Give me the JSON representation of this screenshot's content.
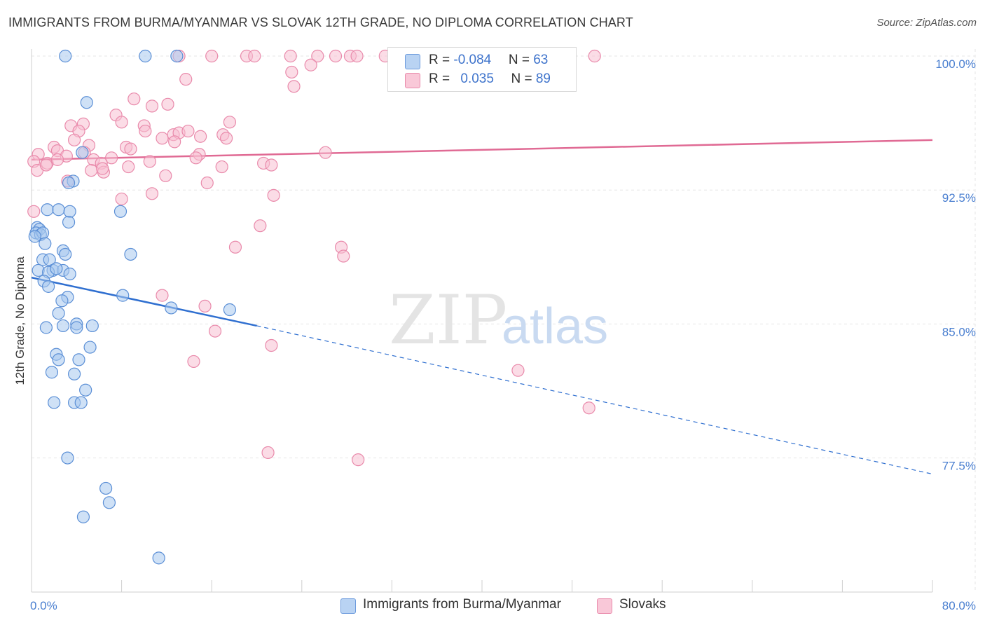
{
  "title": "IMMIGRANTS FROM BURMA/MYANMAR VS SLOVAK 12TH GRADE, NO DIPLOMA CORRELATION CHART",
  "source": "Source: ZipAtlas.com",
  "watermark": {
    "zip": "ZIP",
    "atlas": "atlas"
  },
  "colors": {
    "blue_fill": "#a8c8ef",
    "blue_stroke": "#5b8fd6",
    "blue_line": "#2f6fd0",
    "pink_fill": "#f7bfd2",
    "pink_stroke": "#e98aab",
    "pink_line": "#e06a94",
    "tick": "#4a7fd0",
    "grid": "#e6e6e6"
  },
  "legend": {
    "rows": [
      {
        "r_label": "R = ",
        "r_value": "-0.084",
        "n_label": "N = ",
        "n_value": "63",
        "color": "blue"
      },
      {
        "r_label": "R = ",
        "r_value": "0.035",
        "n_label": "N = ",
        "n_value": "89",
        "color": "pink"
      }
    ]
  },
  "bottom_legend": [
    "Immigrants from Burma/Myanmar",
    "Slovaks"
  ],
  "chart_data": {
    "type": "scatter",
    "xlabel": "",
    "ylabel": "12th Grade, No Diploma",
    "xlim": [
      0,
      80
    ],
    "ylim": [
      71.5,
      101.5
    ],
    "x_tick_labels": [
      "0.0%",
      "80.0%"
    ],
    "y_ticks": [
      100,
      92.5,
      85,
      77.5
    ],
    "y_tick_labels": [
      "100.0%",
      "92.5%",
      "85.0%",
      "77.5%"
    ],
    "grid": true,
    "series": [
      {
        "name": "Immigrants from Burma/Myanmar",
        "color": "blue",
        "R": -0.084,
        "N": 63,
        "trend": {
          "x0": 0,
          "y0": 87.6,
          "x1": 20,
          "y1": 84.9,
          "dashed_to_x": 80,
          "dashed_to_y": 76.6
        },
        "points": [
          [
            3.0,
            100.0
          ],
          [
            10.1,
            100.0
          ],
          [
            12.9,
            100.0
          ],
          [
            4.9,
            97.4
          ],
          [
            4.5,
            94.6
          ],
          [
            3.7,
            93.0
          ],
          [
            3.3,
            92.9
          ],
          [
            1.4,
            91.4
          ],
          [
            2.4,
            91.4
          ],
          [
            3.4,
            91.3
          ],
          [
            7.9,
            91.3
          ],
          [
            3.3,
            90.7
          ],
          [
            0.5,
            90.4
          ],
          [
            0.7,
            90.3
          ],
          [
            0.4,
            90.1
          ],
          [
            0.8,
            90.0
          ],
          [
            1.0,
            90.1
          ],
          [
            0.3,
            89.9
          ],
          [
            1.2,
            89.5
          ],
          [
            2.8,
            89.1
          ],
          [
            8.8,
            88.9
          ],
          [
            1.0,
            88.6
          ],
          [
            3.0,
            88.9
          ],
          [
            1.6,
            88.6
          ],
          [
            0.6,
            88.0
          ],
          [
            1.9,
            88.0
          ],
          [
            1.5,
            87.9
          ],
          [
            2.8,
            88.0
          ],
          [
            2.2,
            88.1
          ],
          [
            3.4,
            87.8
          ],
          [
            1.1,
            87.4
          ],
          [
            1.5,
            87.1
          ],
          [
            3.2,
            86.5
          ],
          [
            8.1,
            86.6
          ],
          [
            2.7,
            86.3
          ],
          [
            12.4,
            85.9
          ],
          [
            17.6,
            85.8
          ],
          [
            2.4,
            85.6
          ],
          [
            2.8,
            84.9
          ],
          [
            1.3,
            84.8
          ],
          [
            4.0,
            85.0
          ],
          [
            4.0,
            84.8
          ],
          [
            5.4,
            84.9
          ],
          [
            2.2,
            83.3
          ],
          [
            5.2,
            83.7
          ],
          [
            2.4,
            83.0
          ],
          [
            4.2,
            83.0
          ],
          [
            1.8,
            82.3
          ],
          [
            3.8,
            82.2
          ],
          [
            4.8,
            81.3
          ],
          [
            2.0,
            80.6
          ],
          [
            3.8,
            80.6
          ],
          [
            4.4,
            80.6
          ],
          [
            3.2,
            77.5
          ],
          [
            6.6,
            75.8
          ],
          [
            6.9,
            75.0
          ],
          [
            4.6,
            74.2
          ],
          [
            11.3,
            71.9
          ]
        ]
      },
      {
        "name": "Slovaks",
        "color": "pink",
        "R": 0.035,
        "N": 89,
        "trend": {
          "x0": 0,
          "y0": 94.2,
          "x1": 80,
          "y1": 95.3
        },
        "points": [
          [
            13.1,
            100.0
          ],
          [
            16.0,
            100.0
          ],
          [
            19.1,
            100.0
          ],
          [
            19.8,
            100.0
          ],
          [
            23.0,
            100.0
          ],
          [
            25.4,
            100.0
          ],
          [
            27.0,
            100.0
          ],
          [
            28.3,
            100.0
          ],
          [
            28.9,
            100.0
          ],
          [
            31.4,
            100.0
          ],
          [
            37.0,
            100.0
          ],
          [
            41.0,
            100.0
          ],
          [
            43.9,
            100.0
          ],
          [
            50.0,
            100.0
          ],
          [
            13.7,
            98.7
          ],
          [
            23.1,
            99.1
          ],
          [
            24.8,
            99.5
          ],
          [
            23.3,
            98.3
          ],
          [
            9.1,
            97.6
          ],
          [
            12.1,
            97.3
          ],
          [
            10.7,
            97.2
          ],
          [
            7.5,
            96.7
          ],
          [
            8.0,
            96.3
          ],
          [
            3.5,
            96.1
          ],
          [
            4.6,
            96.2
          ],
          [
            10.0,
            96.1
          ],
          [
            17.6,
            96.3
          ],
          [
            11.6,
            95.4
          ],
          [
            12.6,
            95.6
          ],
          [
            13.1,
            95.7
          ],
          [
            13.9,
            95.8
          ],
          [
            15.0,
            95.5
          ],
          [
            17.0,
            95.6
          ],
          [
            17.3,
            95.4
          ],
          [
            4.2,
            95.8
          ],
          [
            10.1,
            95.8
          ],
          [
            3.8,
            95.3
          ],
          [
            12.7,
            95.2
          ],
          [
            2.0,
            94.9
          ],
          [
            5.1,
            95.0
          ],
          [
            8.4,
            94.9
          ],
          [
            8.8,
            94.8
          ],
          [
            2.3,
            94.7
          ],
          [
            4.7,
            94.6
          ],
          [
            14.9,
            94.5
          ],
          [
            26.1,
            94.6
          ],
          [
            0.6,
            94.5
          ],
          [
            3.1,
            94.4
          ],
          [
            7.1,
            94.3
          ],
          [
            14.6,
            94.3
          ],
          [
            0.2,
            94.1
          ],
          [
            1.4,
            94.0
          ],
          [
            2.3,
            94.2
          ],
          [
            5.5,
            94.2
          ],
          [
            6.2,
            94.0
          ],
          [
            10.5,
            94.1
          ],
          [
            20.6,
            94.0
          ],
          [
            21.3,
            93.9
          ],
          [
            0.5,
            93.6
          ],
          [
            1.3,
            93.9
          ],
          [
            5.3,
            93.6
          ],
          [
            6.4,
            93.5
          ],
          [
            6.3,
            93.7
          ],
          [
            8.6,
            93.8
          ],
          [
            16.9,
            93.8
          ],
          [
            11.9,
            93.3
          ],
          [
            3.2,
            93.0
          ],
          [
            15.6,
            92.9
          ],
          [
            10.7,
            92.3
          ],
          [
            21.5,
            92.2
          ],
          [
            8.0,
            92.0
          ],
          [
            0.2,
            91.3
          ],
          [
            20.3,
            90.5
          ],
          [
            18.1,
            89.3
          ],
          [
            27.5,
            89.3
          ],
          [
            27.7,
            88.8
          ],
          [
            11.6,
            86.6
          ],
          [
            15.4,
            86.0
          ],
          [
            16.3,
            84.6
          ],
          [
            21.3,
            83.8
          ],
          [
            14.4,
            82.9
          ],
          [
            43.2,
            82.4
          ],
          [
            49.5,
            80.3
          ],
          [
            21.0,
            77.8
          ],
          [
            29.0,
            77.4
          ]
        ]
      }
    ]
  }
}
